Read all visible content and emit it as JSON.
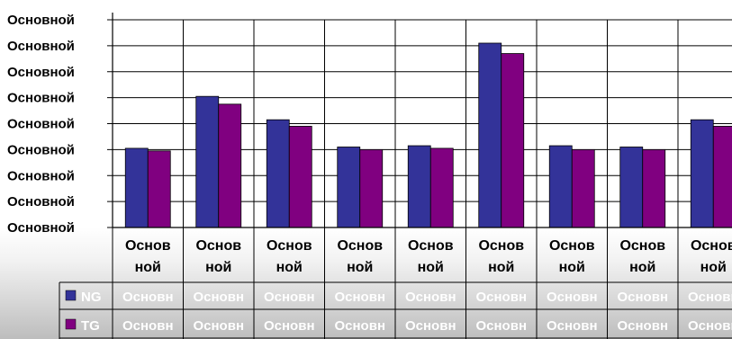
{
  "chart_data": {
    "type": "bar",
    "y_tick_labels": [
      "Основной",
      "Основной",
      "Основной",
      "Основной",
      "Основной",
      "Основной",
      "Основной",
      "Основной",
      "Основной"
    ],
    "categories": [
      [
        "Основ",
        "ной"
      ],
      [
        "Основ",
        "ной"
      ],
      [
        "Основ",
        "ной"
      ],
      [
        "Основ",
        "ной"
      ],
      [
        "Основ",
        "ной"
      ],
      [
        "Основ",
        "ной"
      ],
      [
        "Основ",
        "ной"
      ],
      [
        "Основ",
        "ной"
      ],
      [
        "Основ",
        "ной"
      ]
    ],
    "ylim": [
      0,
      8
    ],
    "grid": true,
    "legend": "table-below",
    "series": [
      {
        "name": "NG",
        "color": "#333399",
        "values": [
          3.05,
          5.05,
          4.15,
          3.1,
          3.15,
          7.1,
          3.15,
          3.1,
          4.15
        ],
        "table_cells": [
          "Основн",
          "Основн",
          "Основн",
          "Основн",
          "Основн",
          "Основн",
          "Основн",
          "Основн",
          "Основн"
        ]
      },
      {
        "name": "TG",
        "color": "#800080",
        "values": [
          2.95,
          4.75,
          3.9,
          3.0,
          3.05,
          6.7,
          3.0,
          3.0,
          3.9
        ],
        "table_cells": [
          "Основн",
          "Основн",
          "Основн",
          "Основн",
          "Основн",
          "Основн",
          "Основн",
          "Основн",
          "Основн"
        ]
      }
    ]
  }
}
